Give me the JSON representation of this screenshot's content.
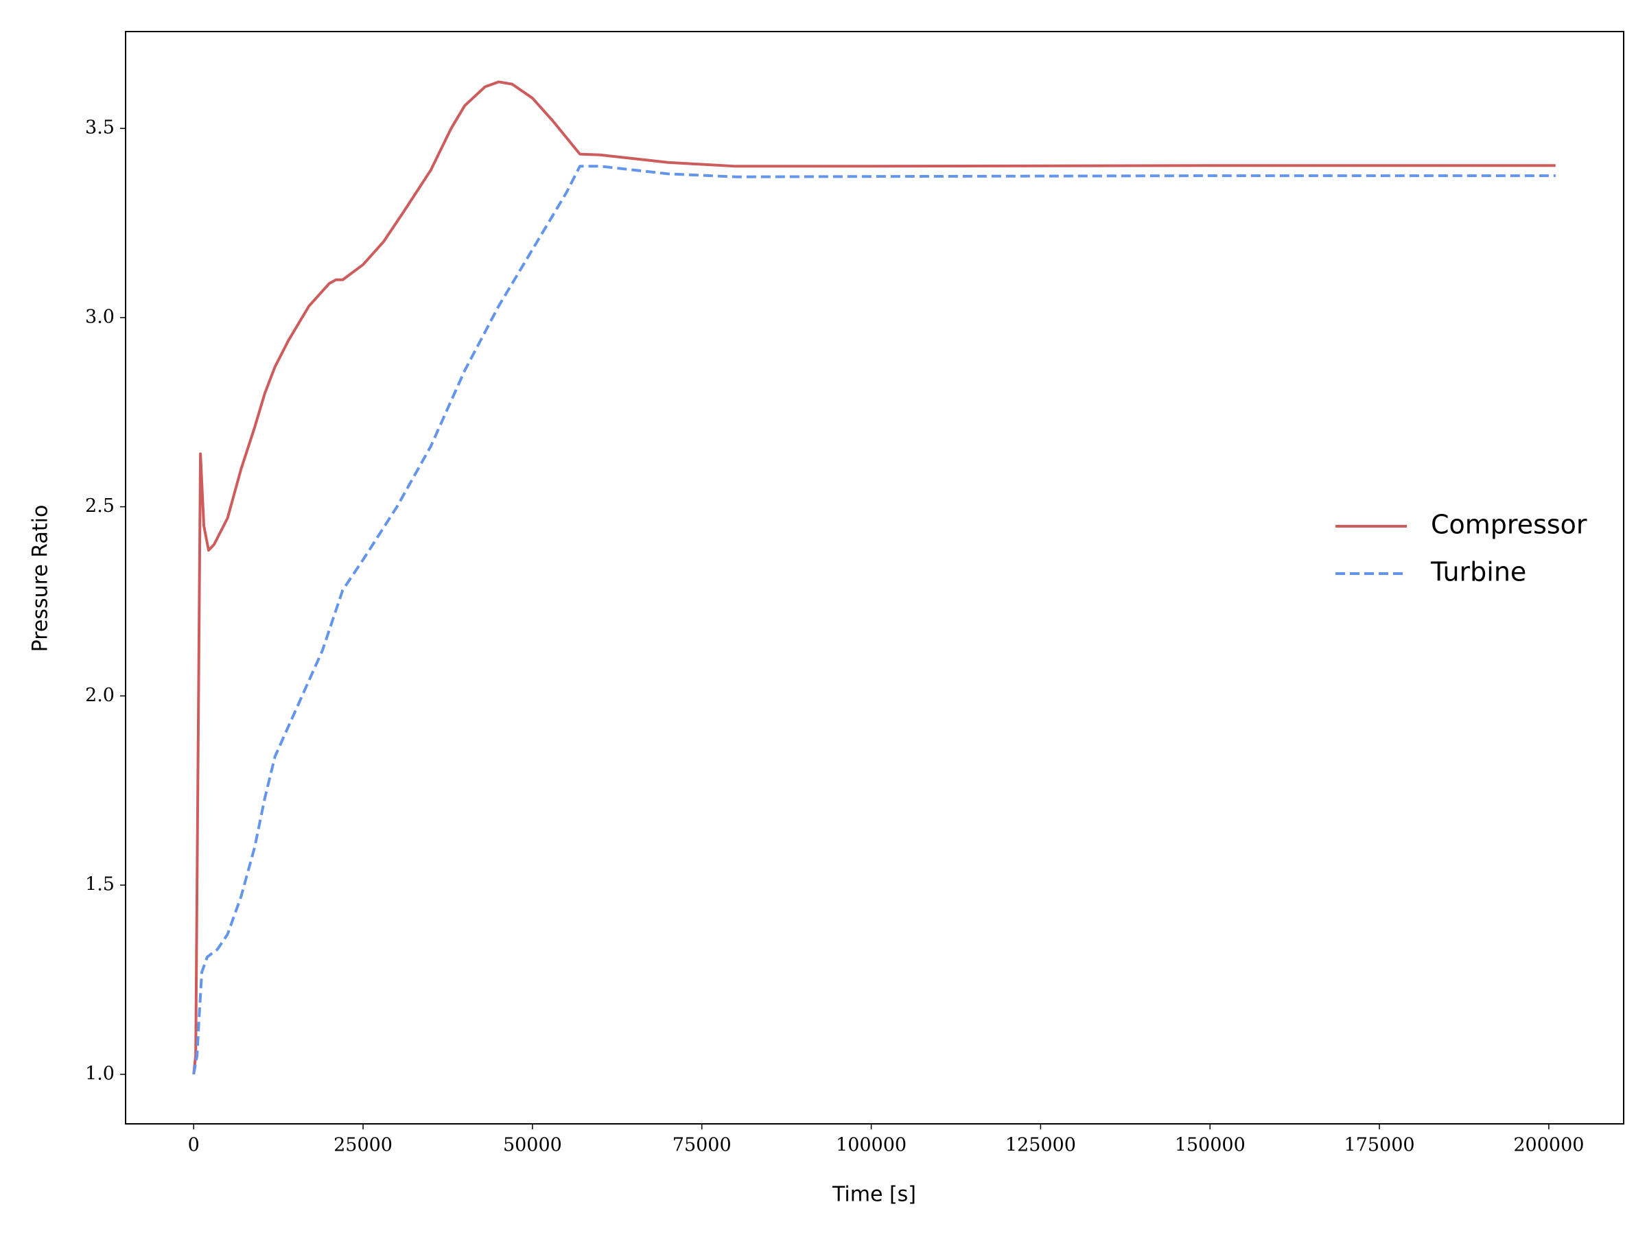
{
  "chart_data": {
    "type": "line",
    "xlabel": "Time [s]",
    "ylabel": "Pressure Ratio",
    "xlim": [
      -10050,
      211050
    ],
    "ylim": [
      0.869,
      3.756
    ],
    "xticks": [
      0,
      25000,
      50000,
      75000,
      100000,
      125000,
      150000,
      175000,
      200000
    ],
    "yticks": [
      {
        "value": 1,
        "label": "1.0"
      },
      1.5,
      {
        "value": 2,
        "label": "2.0"
      },
      2.5,
      {
        "value": 3,
        "label": "3.0"
      },
      3.5
    ],
    "grid": false,
    "legend": "center right",
    "series": [
      {
        "name": "Compressor",
        "color": "#cd5c5c",
        "dash": "solid",
        "x": [
          0,
          300,
          1000,
          1500,
          2200,
          3000,
          5000,
          7000,
          9000,
          10500,
          12000,
          14000,
          17000,
          20000,
          21000,
          22000,
          25000,
          28000,
          31000,
          35000,
          38000,
          40000,
          43000,
          45000,
          47000,
          50000,
          53000,
          57000,
          60000,
          65000,
          70000,
          80000,
          100000,
          150000,
          201000
        ],
        "values": [
          1.0,
          1.05,
          2.64,
          2.45,
          2.385,
          2.4,
          2.47,
          2.6,
          2.71,
          2.8,
          2.87,
          2.94,
          3.03,
          3.09,
          3.1,
          3.1,
          3.14,
          3.2,
          3.28,
          3.39,
          3.5,
          3.56,
          3.61,
          3.623,
          3.617,
          3.58,
          3.52,
          3.432,
          3.43,
          3.42,
          3.41,
          3.4,
          3.4,
          3.402,
          3.402
        ]
      },
      {
        "name": "Turbine",
        "color": "#6495ed",
        "dash": "dashed",
        "x": [
          0,
          500,
          800,
          1200,
          2000,
          3500,
          5000,
          7000,
          9000,
          10500,
          12000,
          14000,
          17000,
          19000,
          22000,
          25000,
          30000,
          35000,
          40000,
          45000,
          50000,
          55000,
          57000,
          60000,
          65000,
          70000,
          80000,
          100000,
          150000,
          201000
        ],
        "values": [
          1.0,
          1.05,
          1.15,
          1.27,
          1.31,
          1.33,
          1.37,
          1.47,
          1.6,
          1.73,
          1.84,
          1.92,
          2.04,
          2.12,
          2.28,
          2.36,
          2.5,
          2.66,
          2.86,
          3.03,
          3.18,
          3.33,
          3.4,
          3.4,
          3.39,
          3.38,
          3.372,
          3.373,
          3.375,
          3.375
        ]
      }
    ]
  }
}
